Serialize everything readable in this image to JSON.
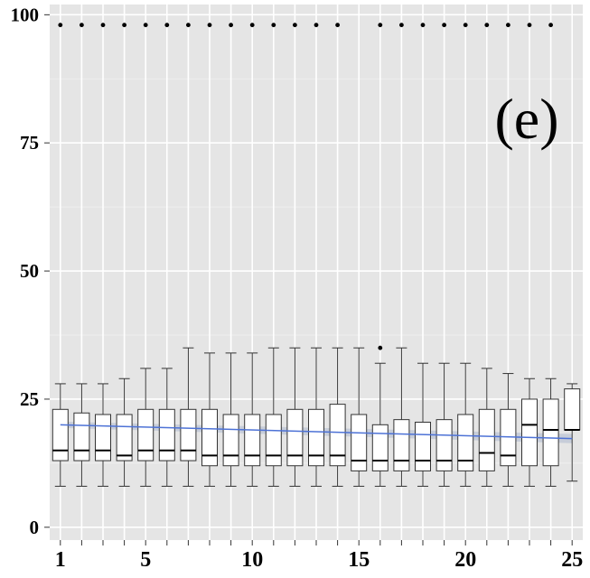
{
  "chart_data": {
    "type": "box",
    "panel_label": "(e)",
    "xlabel": "",
    "ylabel": "",
    "xlim": [
      0.5,
      25.5
    ],
    "ylim": [
      -2.5,
      102
    ],
    "x_ticks": [
      1,
      5,
      10,
      15,
      20,
      25
    ],
    "y_ticks": [
      0,
      25,
      50,
      75,
      100
    ],
    "grid": true,
    "background": "#e5e5e5",
    "box_fill": "#ffffff",
    "trend_color": "#4d72d6",
    "boxes": [
      {
        "x": 1,
        "min": 8,
        "q1": 13,
        "median": 15,
        "q3": 23,
        "max": 28,
        "outliers": [
          98
        ]
      },
      {
        "x": 2,
        "min": 8,
        "q1": 13,
        "median": 15,
        "q3": 22.3,
        "max": 28,
        "outliers": [
          98
        ]
      },
      {
        "x": 3,
        "min": 8,
        "q1": 13,
        "median": 15,
        "q3": 22,
        "max": 28,
        "outliers": [
          98
        ]
      },
      {
        "x": 4,
        "min": 8,
        "q1": 13,
        "median": 14,
        "q3": 22,
        "max": 29,
        "outliers": [
          98
        ]
      },
      {
        "x": 5,
        "min": 8,
        "q1": 13,
        "median": 15,
        "q3": 23,
        "max": 31,
        "outliers": [
          98
        ]
      },
      {
        "x": 6,
        "min": 8,
        "q1": 13,
        "median": 15,
        "q3": 23,
        "max": 31,
        "outliers": [
          98
        ]
      },
      {
        "x": 7,
        "min": 8,
        "q1": 13,
        "median": 15,
        "q3": 23,
        "max": 35,
        "outliers": [
          98
        ]
      },
      {
        "x": 8,
        "min": 8,
        "q1": 12,
        "median": 14,
        "q3": 23,
        "max": 34,
        "outliers": [
          98
        ]
      },
      {
        "x": 9,
        "min": 8,
        "q1": 12,
        "median": 14,
        "q3": 22,
        "max": 34,
        "outliers": [
          98
        ]
      },
      {
        "x": 10,
        "min": 8,
        "q1": 12,
        "median": 14,
        "q3": 22,
        "max": 34,
        "outliers": [
          98
        ]
      },
      {
        "x": 11,
        "min": 8,
        "q1": 12,
        "median": 14,
        "q3": 22,
        "max": 35,
        "outliers": [
          98
        ]
      },
      {
        "x": 12,
        "min": 8,
        "q1": 12,
        "median": 14,
        "q3": 23,
        "max": 35,
        "outliers": [
          98
        ]
      },
      {
        "x": 13,
        "min": 8,
        "q1": 12,
        "median": 14,
        "q3": 23,
        "max": 35,
        "outliers": [
          98
        ]
      },
      {
        "x": 14,
        "min": 8,
        "q1": 12,
        "median": 14,
        "q3": 24,
        "max": 35,
        "outliers": [
          98
        ]
      },
      {
        "x": 15,
        "min": 8,
        "q1": 11,
        "median": 13,
        "q3": 22,
        "max": 35,
        "outliers": []
      },
      {
        "x": 16,
        "min": 8,
        "q1": 11,
        "median": 13,
        "q3": 20,
        "max": 32,
        "outliers": [
          35,
          98
        ]
      },
      {
        "x": 17,
        "min": 8,
        "q1": 11,
        "median": 13,
        "q3": 21,
        "max": 35,
        "outliers": [
          98
        ]
      },
      {
        "x": 18,
        "min": 8,
        "q1": 11,
        "median": 13,
        "q3": 20.5,
        "max": 32,
        "outliers": [
          98
        ]
      },
      {
        "x": 19,
        "min": 8,
        "q1": 11,
        "median": 13,
        "q3": 21,
        "max": 32,
        "outliers": [
          98
        ]
      },
      {
        "x": 20,
        "min": 8,
        "q1": 11,
        "median": 13,
        "q3": 22,
        "max": 32,
        "outliers": [
          98
        ]
      },
      {
        "x": 21,
        "min": 8,
        "q1": 11,
        "median": 14.5,
        "q3": 23,
        "max": 31,
        "outliers": [
          98
        ]
      },
      {
        "x": 22,
        "min": 8,
        "q1": 12,
        "median": 14,
        "q3": 23,
        "max": 30,
        "outliers": [
          98
        ]
      },
      {
        "x": 23,
        "min": 8,
        "q1": 12,
        "median": 20,
        "q3": 25,
        "max": 29,
        "outliers": [
          98
        ]
      },
      {
        "x": 24,
        "min": 8,
        "q1": 12,
        "median": 19,
        "q3": 25,
        "max": 29,
        "outliers": [
          98
        ]
      },
      {
        "x": 25,
        "min": 9,
        "q1": 19,
        "median": 19,
        "q3": 27,
        "max": 28,
        "outliers": []
      }
    ],
    "trend_line": {
      "x": [
        1,
        25
      ],
      "y": [
        20,
        17.3
      ]
    }
  }
}
